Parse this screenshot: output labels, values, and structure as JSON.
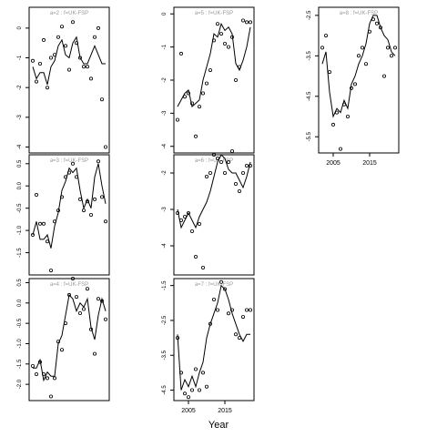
{
  "figure": {
    "xlabel": "Year"
  },
  "chart_data": [
    {
      "type": "line",
      "title": "a=2 : f=UK-FSP",
      "xlim": [
        2001,
        2023
      ],
      "ylim": [
        -4.2,
        0.7
      ],
      "yticks": [
        "0",
        "-1",
        "-2",
        "-3",
        "-4"
      ],
      "ytick_values": [
        0,
        -1,
        -2,
        -3,
        -4
      ],
      "xticks": [],
      "series": [
        {
          "mark": "point",
          "x": [
            2002,
            2003,
            2004,
            2005,
            2006,
            2007,
            2008,
            2009,
            2010,
            2011,
            2012,
            2013,
            2014,
            2015,
            2016,
            2017,
            2018,
            2019,
            2020,
            2021,
            2022
          ],
          "y": [
            -1.1,
            -1.8,
            -1.2,
            -0.4,
            -2.0,
            -1.0,
            -0.9,
            -0.3,
            0.05,
            -0.6,
            -1.4,
            0.2,
            -0.5,
            -1.0,
            -1.3,
            -1.3,
            -1.7,
            -0.3,
            0.0,
            -2.4,
            -4.0
          ]
        },
        {
          "mark": "line",
          "x": [
            2002,
            2003,
            2004,
            2005,
            2006,
            2007,
            2008,
            2009,
            2010,
            2011,
            2012,
            2013,
            2014,
            2015,
            2016,
            2017,
            2018,
            2019,
            2020,
            2021,
            2022
          ],
          "y": [
            -1.3,
            -1.7,
            -1.5,
            -1.5,
            -1.9,
            -1.3,
            -1.1,
            -0.6,
            -0.4,
            -0.9,
            -1.0,
            -0.5,
            -0.3,
            -1.0,
            -1.2,
            -1.2,
            -0.9,
            -0.6,
            -0.9,
            -1.2,
            -1.2
          ]
        }
      ]
    },
    {
      "type": "line",
      "title": "a=5 : f=UK-FSP",
      "xlim": [
        2001,
        2023
      ],
      "ylim": [
        -4.2,
        0.2
      ],
      "yticks": [
        "0",
        "-1",
        "-2",
        "-3",
        "-4"
      ],
      "ytick_values": [
        0,
        -1,
        -2,
        -3,
        -4
      ],
      "xticks": [],
      "series": [
        {
          "mark": "point",
          "x": [
            2002,
            2003,
            2004,
            2005,
            2006,
            2007,
            2008,
            2009,
            2010,
            2011,
            2012,
            2013,
            2014,
            2015,
            2016,
            2017,
            2018,
            2019,
            2020,
            2021,
            2022
          ],
          "y": [
            -3.2,
            -1.2,
            -2.5,
            -2.4,
            -2.7,
            -3.7,
            -2.8,
            -2.4,
            -2.1,
            -1.7,
            -0.8,
            -0.3,
            -0.6,
            -0.9,
            -1.0,
            -0.7,
            -2.0,
            -1.6,
            -0.2,
            -0.25,
            -0.25
          ]
        },
        {
          "mark": "line",
          "x": [
            2002,
            2003,
            2004,
            2005,
            2006,
            2007,
            2008,
            2009,
            2010,
            2011,
            2012,
            2013,
            2014,
            2015,
            2016,
            2017,
            2018,
            2019,
            2020,
            2021,
            2022
          ],
          "y": [
            -2.8,
            -2.6,
            -2.4,
            -2.3,
            -2.8,
            -2.7,
            -2.6,
            -2.0,
            -1.6,
            -1.2,
            -0.6,
            -0.7,
            -0.3,
            -0.5,
            -0.4,
            -0.6,
            -1.5,
            -1.7,
            -1.4,
            -1.0,
            -0.4
          ]
        }
      ]
    },
    {
      "type": "line",
      "title": "a=8 : f=UK-FSP",
      "xlim": [
        2001,
        2023
      ],
      "ylim": [
        -5.9,
        -2.3
      ],
      "yticks": [
        "-2.5",
        "-3.5",
        "-4.5",
        "-5.5"
      ],
      "ytick_values": [
        -2.5,
        -3.5,
        -4.5,
        -5.5
      ],
      "xticks": [
        "2005",
        "2015"
      ],
      "xtick_values": [
        2005,
        2015
      ],
      "series": [
        {
          "mark": "point",
          "x": [
            2002,
            2003,
            2004,
            2005,
            2006,
            2007,
            2008,
            2009,
            2010,
            2011,
            2012,
            2013,
            2014,
            2015,
            2016,
            2017,
            2018,
            2019,
            2020,
            2021,
            2022
          ],
          "y": [
            -3.3,
            -3.0,
            -3.9,
            -5.2,
            -4.9,
            -5.8,
            -4.7,
            -5.0,
            -4.3,
            -4.2,
            -3.5,
            -3.3,
            -3.7,
            -2.9,
            -2.6,
            -2.7,
            -2.8,
            -4.0,
            -3.3,
            -3.5,
            -3.3
          ]
        },
        {
          "mark": "line",
          "x": [
            2002,
            2003,
            2004,
            2005,
            2006,
            2007,
            2008,
            2009,
            2010,
            2011,
            2012,
            2013,
            2014,
            2015,
            2016,
            2017,
            2018,
            2019,
            2020,
            2021,
            2022
          ],
          "y": [
            -3.7,
            -3.4,
            -4.4,
            -5.0,
            -4.8,
            -4.9,
            -4.6,
            -4.8,
            -4.2,
            -4.0,
            -3.7,
            -3.5,
            -3.2,
            -2.7,
            -2.5,
            -2.5,
            -2.8,
            -3.0,
            -3.1,
            -3.4,
            -3.5
          ]
        }
      ]
    },
    {
      "type": "line",
      "title": "a=3 : f=UK-FSP",
      "xlim": [
        2001,
        2023
      ],
      "ylim": [
        -2.0,
        0.7
      ],
      "yticks": [
        "0.5",
        "0.0",
        "-0.5",
        "-1.0",
        "-1.5"
      ],
      "ytick_values": [
        0.5,
        0.0,
        -0.5,
        -1.0,
        -1.5
      ],
      "xticks": [],
      "series": [
        {
          "mark": "point",
          "x": [
            2002,
            2003,
            2004,
            2005,
            2006,
            2007,
            2008,
            2009,
            2010,
            2011,
            2012,
            2013,
            2014,
            2015,
            2016,
            2017,
            2018,
            2019,
            2020,
            2021,
            2022
          ],
          "y": [
            -1.1,
            -0.2,
            -0.85,
            -0.85,
            -1.25,
            -1.9,
            -0.8,
            -0.55,
            -0.25,
            0.2,
            0.3,
            0.5,
            0.2,
            -0.3,
            -0.55,
            -0.35,
            -0.65,
            -0.3,
            0.55,
            -0.25,
            -0.8
          ]
        },
        {
          "mark": "line",
          "x": [
            2002,
            2003,
            2004,
            2005,
            2006,
            2007,
            2008,
            2009,
            2010,
            2011,
            2012,
            2013,
            2014,
            2015,
            2016,
            2017,
            2018,
            2019,
            2020,
            2021,
            2022
          ],
          "y": [
            -1.1,
            -0.8,
            -1.2,
            -1.2,
            -1.1,
            -1.4,
            -0.9,
            -0.6,
            -0.1,
            0.1,
            0.4,
            0.3,
            0.4,
            -0.1,
            -0.5,
            -0.3,
            -0.5,
            0.2,
            0.5,
            0.0,
            -0.4
          ]
        }
      ]
    },
    {
      "type": "line",
      "title": "a=6 : f=UK-FSP",
      "xlim": [
        2001,
        2023
      ],
      "ylim": [
        -4.8,
        -1.5
      ],
      "yticks": [
        "-2",
        "-3",
        "-4"
      ],
      "ytick_values": [
        -2,
        -3,
        -4
      ],
      "xticks": [],
      "series": [
        {
          "mark": "point",
          "x": [
            2002,
            2003,
            2004,
            2005,
            2006,
            2007,
            2008,
            2009,
            2010,
            2011,
            2012,
            2013,
            2014,
            2015,
            2016,
            2017,
            2018,
            2019,
            2020,
            2021,
            2022
          ],
          "y": [
            -3.1,
            -3.3,
            -3.2,
            -3.1,
            -3.6,
            -4.3,
            -3.4,
            -4.6,
            -2.1,
            -2.0,
            -1.5,
            -1.6,
            -1.7,
            -2.0,
            -1.7,
            -1.4,
            -2.3,
            -2.5,
            -2.0,
            -1.8,
            -1.8
          ]
        },
        {
          "mark": "line",
          "x": [
            2002,
            2003,
            2004,
            2005,
            2006,
            2007,
            2008,
            2009,
            2010,
            2011,
            2012,
            2013,
            2014,
            2015,
            2016,
            2017,
            2018,
            2019,
            2020,
            2021,
            2022
          ],
          "y": [
            -3.0,
            -3.5,
            -3.3,
            -3.1,
            -3.3,
            -3.5,
            -3.2,
            -3.0,
            -2.8,
            -2.5,
            -2.1,
            -1.7,
            -1.5,
            -1.6,
            -1.9,
            -2.0,
            -2.0,
            -2.2,
            -2.4,
            -2.1,
            -1.7
          ]
        }
      ]
    },
    {
      "type": "line",
      "title": "a=4 : f=UK-FSP",
      "xlim": [
        2001,
        2023
      ],
      "ylim": [
        -2.4,
        0.6
      ],
      "yticks": [
        "0.5",
        "0.0",
        "-0.5",
        "-1.0",
        "-1.5",
        "-2.0"
      ],
      "ytick_values": [
        0.5,
        0.0,
        -0.5,
        -1.0,
        -1.5,
        -2.0
      ],
      "xticks": [],
      "series": [
        {
          "mark": "point",
          "x": [
            2002,
            2003,
            2004,
            2005,
            2006,
            2007,
            2008,
            2009,
            2010,
            2011,
            2012,
            2013,
            2014,
            2015,
            2016,
            2017,
            2018,
            2019,
            2020,
            2021,
            2022
          ],
          "y": [
            -1.55,
            -1.75,
            -1.45,
            -1.75,
            -1.85,
            -2.3,
            -1.85,
            -0.95,
            -1.15,
            -0.5,
            0.2,
            0.6,
            0.15,
            -0.25,
            -0.15,
            0.35,
            -0.65,
            -1.25,
            0.1,
            0.05,
            -0.4
          ]
        },
        {
          "mark": "line",
          "x": [
            2002,
            2003,
            2004,
            2005,
            2006,
            2007,
            2008,
            2009,
            2010,
            2011,
            2012,
            2013,
            2014,
            2015,
            2016,
            2017,
            2018,
            2019,
            2020,
            2021,
            2022
          ],
          "y": [
            -1.6,
            -1.6,
            -1.4,
            -1.9,
            -1.7,
            -1.8,
            -1.8,
            -1.0,
            -0.8,
            -0.3,
            0.2,
            0.1,
            -0.2,
            0.0,
            -0.1,
            0.1,
            -0.6,
            -0.9,
            -0.3,
            0.1,
            -0.2
          ]
        }
      ]
    },
    {
      "type": "line",
      "title": "a=7 : f=UK-FSP",
      "xlim": [
        2001,
        2023
      ],
      "ylim": [
        -4.8,
        -1.3
      ],
      "yticks": [
        "-1.5",
        "-2.5",
        "-3.5",
        "-4.5"
      ],
      "ytick_values": [
        -1.5,
        -2.5,
        -3.5,
        -4.5
      ],
      "xticks": [
        "2005",
        "2015"
      ],
      "xtick_values": [
        2005,
        2015
      ],
      "series": [
        {
          "mark": "point",
          "x": [
            2002,
            2003,
            2004,
            2005,
            2006,
            2007,
            2008,
            2009,
            2010,
            2011,
            2012,
            2013,
            2014,
            2015,
            2016,
            2017,
            2018,
            2019,
            2020,
            2021,
            2022
          ],
          "y": [
            -3.0,
            -4.0,
            -4.6,
            -4.7,
            -4.5,
            -3.9,
            -4.5,
            -4.0,
            -4.4,
            -2.6,
            -1.9,
            -2.2,
            -1.4,
            -1.6,
            -2.3,
            -2.2,
            -2.9,
            -3.0,
            -2.4,
            -2.2,
            -2.2
          ]
        },
        {
          "mark": "line",
          "x": [
            2002,
            2003,
            2004,
            2005,
            2006,
            2007,
            2008,
            2009,
            2010,
            2011,
            2012,
            2013,
            2014,
            2015,
            2016,
            2017,
            2018,
            2019,
            2020,
            2021,
            2022
          ],
          "y": [
            -2.9,
            -4.5,
            -4.2,
            -4.4,
            -4.1,
            -4.4,
            -4.0,
            -3.7,
            -3.0,
            -2.6,
            -2.3,
            -2.0,
            -1.5,
            -1.6,
            -1.9,
            -2.3,
            -2.6,
            -2.9,
            -3.1,
            -2.9,
            -2.9
          ]
        }
      ]
    }
  ]
}
